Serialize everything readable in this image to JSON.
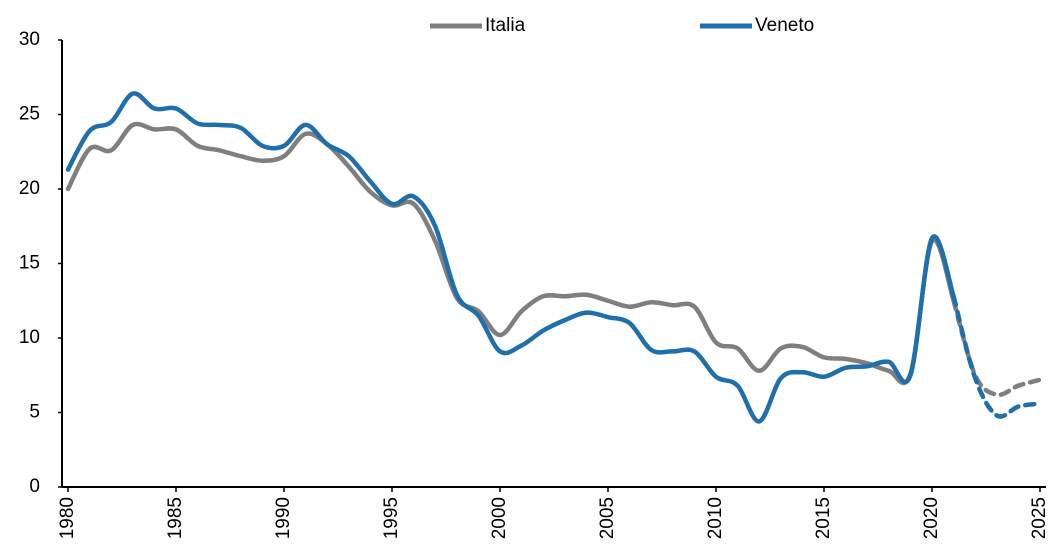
{
  "chart_data": {
    "type": "line",
    "x": [
      1980,
      1981,
      1982,
      1983,
      1984,
      1985,
      1986,
      1987,
      1988,
      1989,
      1990,
      1991,
      1992,
      1993,
      1994,
      1995,
      1996,
      1997,
      1998,
      1999,
      2000,
      2001,
      2002,
      2003,
      2004,
      2005,
      2006,
      2007,
      2008,
      2009,
      2010,
      2011,
      2012,
      2013,
      2014,
      2015,
      2016,
      2017,
      2018,
      2019,
      2020,
      2021,
      2022,
      2023,
      2024,
      2025
    ],
    "series": [
      {
        "name": "Italia",
        "color": "#7f7f7f",
        "values": [
          20.0,
          22.7,
          22.6,
          24.3,
          24.0,
          24.0,
          22.9,
          22.6,
          22.2,
          21.9,
          22.2,
          23.7,
          23.0,
          21.5,
          19.8,
          18.9,
          19.0,
          16.5,
          12.7,
          11.8,
          10.2,
          11.8,
          12.8,
          12.8,
          12.9,
          12.5,
          12.1,
          12.4,
          12.2,
          12.1,
          9.7,
          9.3,
          7.8,
          9.3,
          9.4,
          8.7,
          8.6,
          8.3,
          7.8,
          7.6,
          16.5,
          12.5,
          7.5,
          6.2,
          6.8,
          7.2
        ]
      },
      {
        "name": "Veneto",
        "color": "#1f6fad",
        "values": [
          21.3,
          23.9,
          24.5,
          26.4,
          25.4,
          25.4,
          24.4,
          24.3,
          24.1,
          22.9,
          22.9,
          24.3,
          23.0,
          22.2,
          20.5,
          19.0,
          19.5,
          17.5,
          12.9,
          11.5,
          9.1,
          9.5,
          10.5,
          11.2,
          11.7,
          11.4,
          11.0,
          9.2,
          9.1,
          9.1,
          7.4,
          6.8,
          4.4,
          7.3,
          7.7,
          7.4,
          8.0,
          8.1,
          8.4,
          7.5,
          16.7,
          12.8,
          7.3,
          4.8,
          5.4,
          5.6
        ]
      }
    ],
    "dashed_from": 2021,
    "xlim": [
      1980,
      2025
    ],
    "xticks": [
      1980,
      1985,
      1990,
      1995,
      2000,
      2005,
      2010,
      2015,
      2020,
      2025
    ],
    "ylim": [
      0,
      30
    ],
    "yticks": [
      0,
      5,
      10,
      15,
      20,
      25,
      30
    ],
    "legend": "top",
    "grid": false
  }
}
